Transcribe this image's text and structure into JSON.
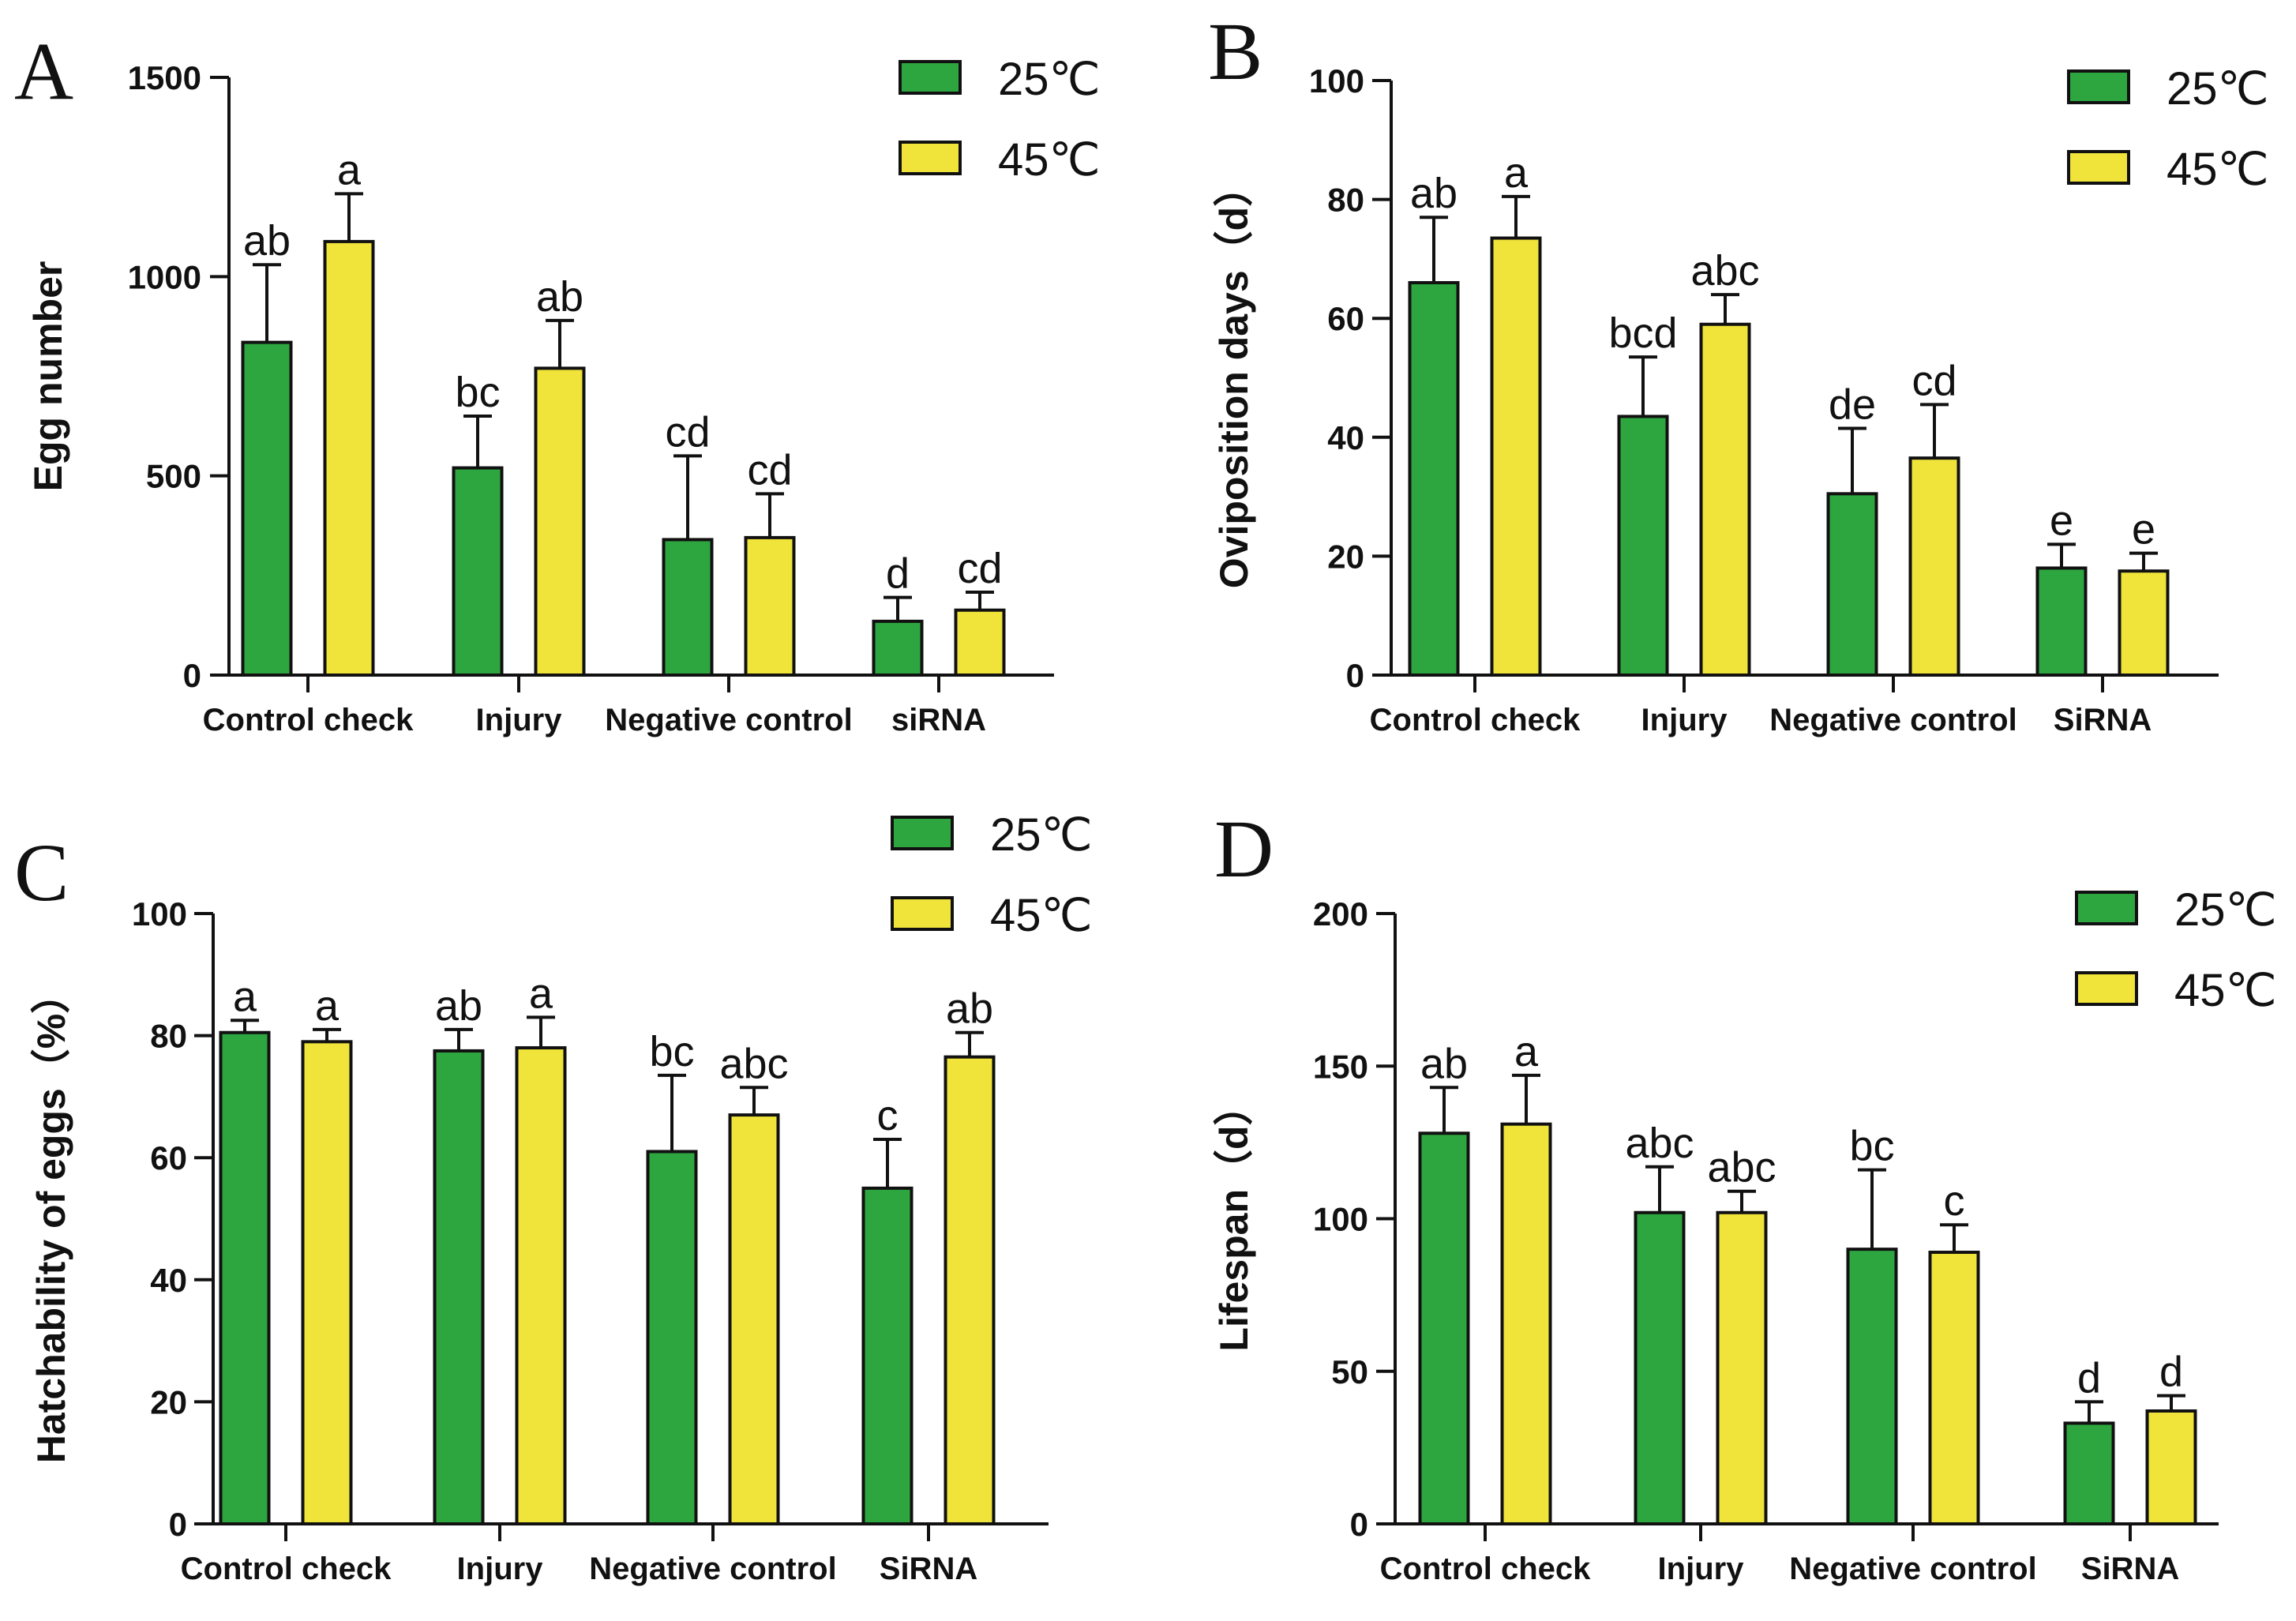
{
  "colors": {
    "green": "#2ea640",
    "yellow": "#f0e43a",
    "axis": "#111111"
  },
  "chart_data": [
    {
      "panel": "A",
      "type": "bar",
      "ylabel": "Egg number",
      "ylim": [
        0,
        1500
      ],
      "yticks": [
        0,
        500,
        1000,
        1500
      ],
      "categories": [
        "Control check",
        "Injury",
        "Negative control",
        "siRNA"
      ],
      "series": [
        {
          "name": "25℃",
          "values": [
            835,
            520,
            340,
            135
          ],
          "errors": [
            195,
            130,
            210,
            60
          ],
          "labels": [
            "ab",
            "bc",
            "cd",
            "d"
          ]
        },
        {
          "name": "45℃",
          "values": [
            1088,
            770,
            345,
            163
          ],
          "errors": [
            120,
            120,
            110,
            45
          ],
          "labels": [
            "a",
            "ab",
            "cd",
            "cd"
          ]
        }
      ]
    },
    {
      "panel": "B",
      "type": "bar",
      "ylabel": "Oviposition days（d）",
      "ylim": [
        0,
        100
      ],
      "yticks": [
        0,
        20,
        40,
        60,
        80,
        100
      ],
      "categories": [
        "Control check",
        "Injury",
        "Negative control",
        "SiRNA"
      ],
      "series": [
        {
          "name": "25℃",
          "values": [
            66,
            43.5,
            30.5,
            18
          ],
          "errors": [
            11,
            10,
            11,
            4
          ],
          "labels": [
            "ab",
            "bcd",
            "de",
            "e"
          ]
        },
        {
          "name": "45℃",
          "values": [
            73.5,
            59,
            36.5,
            17.5
          ],
          "errors": [
            7,
            5,
            9,
            3
          ],
          "labels": [
            "a",
            "abc",
            "cd",
            "e"
          ]
        }
      ]
    },
    {
      "panel": "C",
      "type": "bar",
      "ylabel": "Hatchability of eggs（%）",
      "ylim": [
        0,
        100
      ],
      "yticks": [
        0,
        20,
        40,
        60,
        80,
        100
      ],
      "categories": [
        "Control check",
        "Injury",
        "Negative control",
        "SiRNA"
      ],
      "series": [
        {
          "name": "25℃",
          "values": [
            80.5,
            77.5,
            61,
            55
          ],
          "errors": [
            2,
            3.5,
            12.5,
            8
          ],
          "labels": [
            "a",
            "ab",
            "bc",
            "c"
          ]
        },
        {
          "name": "45℃",
          "values": [
            79,
            78,
            67,
            76.5
          ],
          "errors": [
            2,
            5,
            4.5,
            4
          ],
          "labels": [
            "a",
            "a",
            "abc",
            "ab"
          ]
        }
      ]
    },
    {
      "panel": "D",
      "type": "bar",
      "ylabel": "Lifespan（d）",
      "ylim": [
        0,
        200
      ],
      "yticks": [
        0,
        50,
        100,
        150,
        200
      ],
      "categories": [
        "Control check",
        "Injury",
        "Negative control",
        "SiRNA"
      ],
      "series": [
        {
          "name": "25℃",
          "values": [
            128,
            102,
            90,
            33
          ],
          "errors": [
            15,
            15,
            26,
            7
          ],
          "labels": [
            "ab",
            "abc",
            "bc",
            "d"
          ]
        },
        {
          "name": "45℃",
          "values": [
            131,
            102,
            89,
            37
          ],
          "errors": [
            16,
            7,
            9,
            5
          ],
          "labels": [
            "a",
            "abc",
            "c",
            "d"
          ]
        }
      ]
    }
  ]
}
